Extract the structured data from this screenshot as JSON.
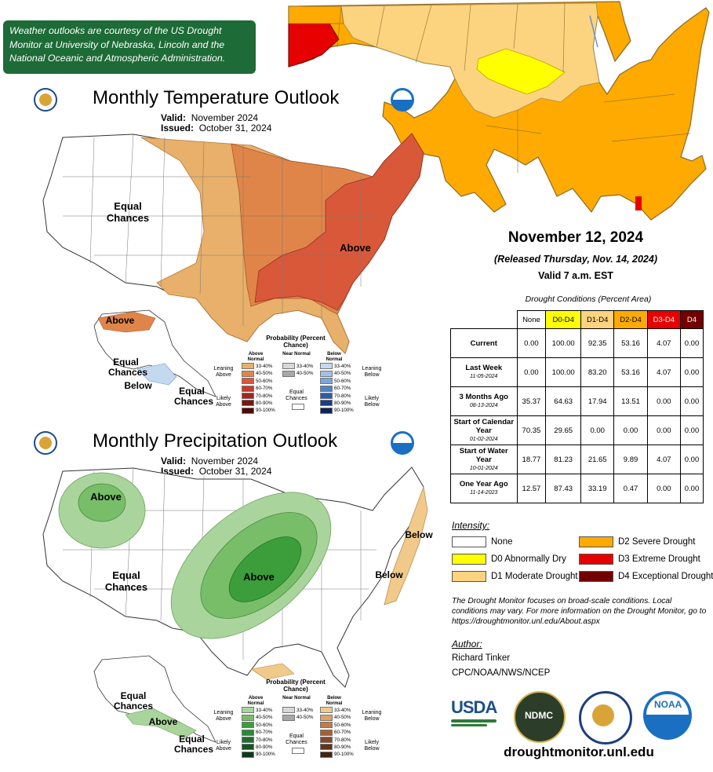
{
  "note": "Weather outlooks are courtesy of the US Drought Monitor at University of Nebraska, Lincoln and the National Oceanic and Atmospheric Administration.",
  "temp_outlook": {
    "title": "Monthly Temperature Outlook",
    "valid_label": "Valid:",
    "valid_value": "November 2024",
    "issued_label": "Issued:",
    "issued_value": "October 31, 2024",
    "labels": {
      "equal_chances": "Equal Chances",
      "above": "Above",
      "alaska_above": "Above",
      "alaska_equal": "Equal Chances",
      "alaska_below": "Below",
      "hawaii_equal": "Equal Chances"
    },
    "colors": {
      "lean_33_40": "#e8b06a",
      "lean_40_50": "#e0854a",
      "lean_50_60": "#d9583a"
    }
  },
  "precip_outlook": {
    "title": "Monthly Precipitation Outlook",
    "valid_label": "Valid:",
    "valid_value": "November 2024",
    "issued_label": "Issued:",
    "issued_value": "October 31, 2024",
    "labels": {
      "above_nw": "Above",
      "equal_chances": "Equal Chances",
      "above_mid": "Above",
      "below_ne": "Below",
      "below_ea": "Below",
      "alaska_equal": "Equal Chances",
      "alaska_above": "Above",
      "hawaii_equal": "Equal Chances"
    },
    "colors": {
      "lean_33_40": "#a9d59c",
      "lean_40_50": "#78bd68",
      "lean_50_60": "#3b9e3b",
      "below_33_40": "#f0c98b"
    }
  },
  "temp_legend": {
    "title": "Probability (Percent Chance)",
    "col_above": "Above Normal",
    "col_near": "Near Normal",
    "col_below": "Below Normal",
    "leaning_above": "Leaning Above",
    "likely_above": "Likely Above",
    "leaning_below": "Leaning Below",
    "likely_below": "Likely Below",
    "equal_chances": "Equal Chances",
    "ranges": [
      "33-40%",
      "40-50%",
      "50-60%",
      "60-70%",
      "70-80%",
      "80-90%",
      "90-100%"
    ],
    "near_ranges": [
      "33-40%",
      "40-50%"
    ],
    "above_colors": [
      "#e8b06a",
      "#e0854a",
      "#d9583a",
      "#c43c2c",
      "#a5251e",
      "#7a1512",
      "#4e0a08"
    ],
    "near_colors": [
      "#d8d8d8",
      "#a8a8a8"
    ],
    "below_colors": [
      "#c4d9ee",
      "#a1c2e6",
      "#7aa7db",
      "#4f84c8",
      "#2c5ea8",
      "#1b3d85",
      "#0e2360"
    ]
  },
  "precip_legend": {
    "title": "Probability (Percent Chance)",
    "col_above": "Above Normal",
    "col_near": "Near Normal",
    "col_below": "Below Normal",
    "leaning_above": "Leaning Above",
    "likely_above": "Likely Above",
    "leaning_below": "Leaning Below",
    "likely_below": "Likely Below",
    "equal_chances": "Equal Chances",
    "ranges": [
      "33-40%",
      "40-50%",
      "50-60%",
      "60-70%",
      "70-80%",
      "80-90%",
      "90-100%"
    ],
    "near_ranges": [
      "33-40%",
      "40-50%"
    ],
    "above_colors": [
      "#a9d59c",
      "#78bd68",
      "#3b9e3b",
      "#2a8a3a",
      "#1e6f2e",
      "#155524",
      "#0c3a18"
    ],
    "near_colors": [
      "#d8d8d8",
      "#a8a8a8"
    ],
    "below_colors": [
      "#f0c98b",
      "#dba367",
      "#c27c45",
      "#a55f33",
      "#864826",
      "#66331a",
      "#452210"
    ]
  },
  "drought": {
    "date": "November 12, 2024",
    "released": "(Released Thursday, Nov. 14, 2024)",
    "valid": "Valid 7 a.m. EST",
    "conditions_title": "Drought Conditions (Percent Area)",
    "columns": [
      "None",
      "D0-D4",
      "D1-D4",
      "D2-D4",
      "D3-D4",
      "D4"
    ],
    "column_colors": [
      "#ffffff",
      "#ffff00",
      "#fcd37f",
      "#ffaa00",
      "#e60000",
      "#730000"
    ],
    "column_text_colors": [
      "#000000",
      "#000000",
      "#000000",
      "#000000",
      "#ffffff",
      "#ffffff"
    ],
    "rows": [
      {
        "label": "Current",
        "date": "",
        "values": [
          "0.00",
          "100.00",
          "92.35",
          "53.16",
          "4.07",
          "0.00"
        ]
      },
      {
        "label": "Last Week",
        "date": "11-05-2024",
        "values": [
          "0.00",
          "100.00",
          "83.20",
          "53.16",
          "4.07",
          "0.00"
        ]
      },
      {
        "label": "3 Months Ago",
        "date": "08-13-2024",
        "values": [
          "35.37",
          "64.63",
          "17.94",
          "13.51",
          "0.00",
          "0.00"
        ]
      },
      {
        "label": "Start of Calendar Year",
        "date": "01-02-2024",
        "values": [
          "70.35",
          "29.65",
          "0.00",
          "0.00",
          "0.00",
          "0.00"
        ]
      },
      {
        "label": "Start of Water Year",
        "date": "10-01-2024",
        "values": [
          "18.77",
          "81.23",
          "21.65",
          "9.89",
          "4.07",
          "0.00"
        ]
      },
      {
        "label": "One Year Ago",
        "date": "11-14-2023",
        "values": [
          "12.57",
          "87.43",
          "33.19",
          "0.47",
          "0.00",
          "0.00"
        ]
      }
    ],
    "intensity_title": "Intensity:",
    "intensity": [
      {
        "label": "None",
        "color": "#ffffff"
      },
      {
        "label": "D0 Abnormally Dry",
        "color": "#ffff00"
      },
      {
        "label": "D1 Moderate Drought",
        "color": "#fcd37f"
      },
      {
        "label": "D2 Severe Drought",
        "color": "#ffaa00"
      },
      {
        "label": "D3 Extreme Drought",
        "color": "#e60000"
      },
      {
        "label": "D4 Exceptional Drought",
        "color": "#730000"
      }
    ],
    "disclaimer": "The Drought Monitor focuses on broad-scale conditions. Local conditions may vary. For more information on the Drought Monitor, go to https://droughtmonitor.unl.edu/About.aspx",
    "author_title": "Author:",
    "author_name": "Richard Tinker",
    "author_org": "CPC/NOAA/NWS/NCEP",
    "logos": {
      "usda": "USDA",
      "ndmc": "NDMC",
      "noaa": "NOAA"
    },
    "website": "droughtmonitor.unl.edu"
  }
}
